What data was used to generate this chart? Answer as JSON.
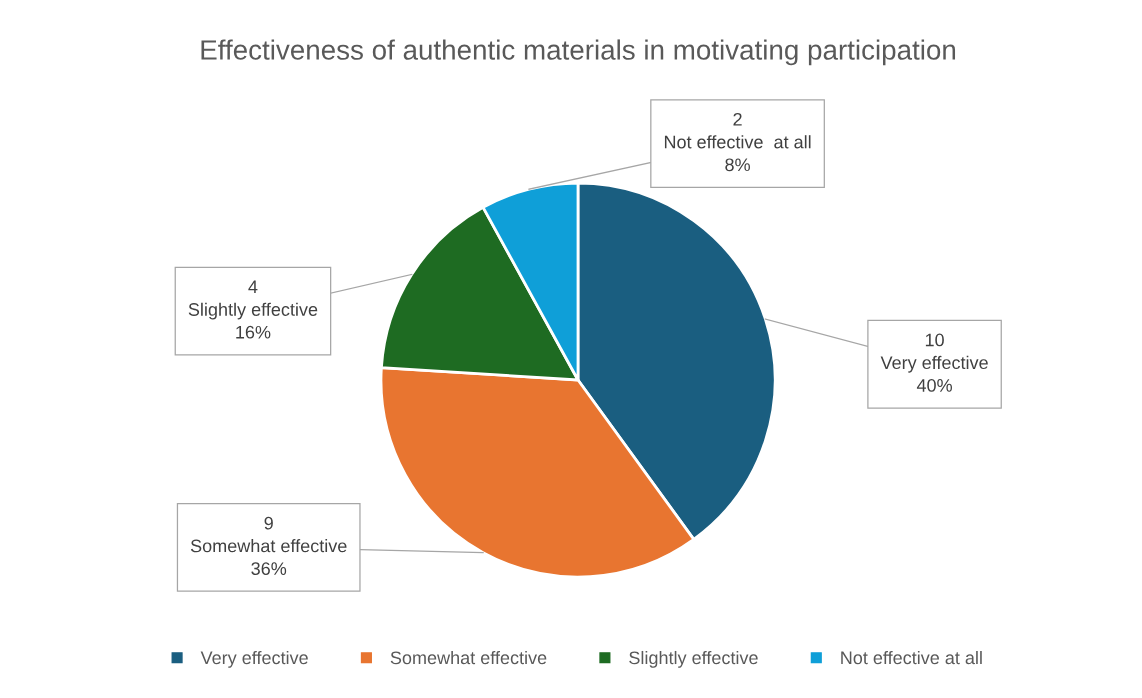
{
  "chart_data": {
    "type": "pie",
    "title": "Effectiveness of authentic materials in motivating participation",
    "categories": [
      "Very effective",
      "Somewhat effective",
      "Slightly effective",
      "Not effective at all"
    ],
    "values": [
      10,
      9,
      4,
      2
    ],
    "colors": [
      "#1a5e80",
      "#e87530",
      "#1e6b22",
      "#0f9fd8"
    ],
    "value_labels": [
      "10\nVery effective\n40%",
      "9\nSomewhat effective\n36%",
      "4\nSlightly effective\n16%",
      "2\nNot effective  at all\n8%"
    ],
    "legend": "bottom"
  }
}
